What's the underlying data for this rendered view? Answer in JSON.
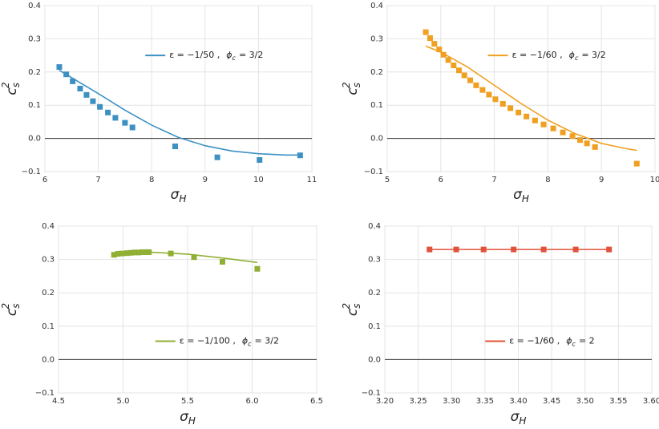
{
  "chart_data": [
    {
      "type": "line",
      "xlim": [
        6,
        11
      ],
      "xticks": [
        6,
        7,
        8,
        9,
        10,
        11
      ],
      "ylim": [
        -0.1,
        0.4
      ],
      "yticks": [
        {
          "value": -0.1,
          "label": "−0.1"
        },
        {
          "value": 0,
          "label": "0.0"
        },
        0.1,
        0.2,
        0.3,
        0.4
      ],
      "grid": true,
      "legend": "upper-center",
      "xlabel": {
        "base": "σ",
        "sub": "H"
      },
      "ylabel": {
        "base": "c",
        "sub": "s",
        "sup": "2"
      },
      "series": [
        {
          "name_parts": [
            "ε = −1/50 ,",
            "ϕ",
            "c",
            "= 3/2"
          ],
          "color": "#3d91c2",
          "x": [
            6.27,
            6.5,
            7,
            7.5,
            8,
            8.5,
            9,
            9.5,
            10,
            10.5,
            10.8
          ],
          "values": [
            0.205,
            0.183,
            0.135,
            0.085,
            0.04,
            0.003,
            -0.022,
            -0.038,
            -0.046,
            -0.05,
            -0.05
          ],
          "markers": {
            "x": [
              6.27,
              6.4,
              6.52,
              6.66,
              6.78,
              6.9,
              7.03,
              7.18,
              7.32,
              7.5,
              7.64,
              8.44,
              9.23,
              10.02,
              10.78
            ],
            "values": [
              0.215,
              0.193,
              0.172,
              0.15,
              0.131,
              0.112,
              0.095,
              0.078,
              0.062,
              0.047,
              0.033,
              -0.024,
              -0.057,
              -0.065,
              -0.051
            ]
          }
        }
      ]
    },
    {
      "type": "line",
      "xlim": [
        5,
        10
      ],
      "xticks": [
        5,
        6,
        7,
        8,
        9,
        10
      ],
      "ylim": [
        -0.1,
        0.4
      ],
      "yticks": [
        {
          "value": -0.1,
          "label": "−0.1"
        },
        {
          "value": 0,
          "label": "0.0"
        },
        0.1,
        0.2,
        0.3,
        0.4
      ],
      "grid": true,
      "legend": "upper-center",
      "xlabel": {
        "base": "σ",
        "sub": "H"
      },
      "ylabel": {
        "base": "c",
        "sub": "s",
        "sup": "2"
      },
      "series": [
        {
          "name_parts": [
            "ε = −1/60 ,",
            "ϕ",
            "c",
            "= 3/2"
          ],
          "color": "#f0a020",
          "x": [
            5.72,
            6,
            6.5,
            7,
            7.5,
            8,
            8.5,
            9,
            9.5,
            9.66
          ],
          "values": [
            0.278,
            0.26,
            0.215,
            0.16,
            0.105,
            0.055,
            0.015,
            -0.015,
            -0.032,
            -0.036
          ],
          "markers": {
            "x": [
              5.72,
              5.8,
              5.88,
              5.97,
              6.05,
              6.14,
              6.24,
              6.34,
              6.44,
              6.55,
              6.66,
              6.78,
              6.9,
              7.02,
              7.16,
              7.3,
              7.45,
              7.6,
              7.76,
              7.92,
              8.1,
              8.28,
              8.46,
              8.6,
              8.73,
              8.88,
              9.66
            ],
            "values": [
              0.32,
              0.302,
              0.285,
              0.268,
              0.252,
              0.236,
              0.22,
              0.205,
              0.19,
              0.175,
              0.16,
              0.146,
              0.132,
              0.118,
              0.104,
              0.091,
              0.078,
              0.066,
              0.054,
              0.042,
              0.03,
              0.018,
              0.007,
              -0.005,
              -0.015,
              -0.026,
              -0.076
            ]
          }
        }
      ]
    },
    {
      "type": "line",
      "xlim": [
        4.5,
        6.5
      ],
      "xticks": [
        4.5,
        {
          "value": 5,
          "label": "5.0"
        },
        5.5,
        {
          "value": 6,
          "label": "6.0"
        },
        6.5
      ],
      "ylim": [
        -0.1,
        0.4
      ],
      "yticks": [
        {
          "value": -0.1,
          "label": "−0.1"
        },
        {
          "value": 0,
          "label": "0.0"
        },
        0.1,
        0.2,
        0.3,
        0.4
      ],
      "grid": true,
      "legend": "lower-center",
      "xlabel": {
        "base": "σ",
        "sub": "H"
      },
      "ylabel": {
        "base": "c",
        "sub": "s",
        "sup": "2"
      },
      "series": [
        {
          "name_parts": [
            "ε = −1/100 ,",
            "ϕ",
            "c",
            "= 3/2"
          ],
          "color": "#8fb032",
          "x": [
            4.93,
            5.2,
            5.5,
            5.8,
            6.04
          ],
          "values": [
            0.318,
            0.322,
            0.316,
            0.303,
            0.291
          ],
          "markers": {
            "x": [
              4.93,
              4.96,
              4.99,
              5.03,
              5.06,
              5.09,
              5.12,
              5.15,
              5.18,
              5.2,
              5.37,
              5.55,
              5.77,
              6.04
            ],
            "values": [
              0.314,
              0.317,
              0.318,
              0.319,
              0.32,
              0.321,
              0.321,
              0.322,
              0.322,
              0.322,
              0.318,
              0.307,
              0.293,
              0.272
            ]
          }
        }
      ]
    },
    {
      "type": "line",
      "xlim": [
        3.2,
        3.6
      ],
      "xticks": [
        {
          "value": 3.2,
          "label": "3.20"
        },
        {
          "value": 3.25,
          "label": "3.25"
        },
        {
          "value": 3.3,
          "label": "3.30"
        },
        {
          "value": 3.35,
          "label": "3.35"
        },
        {
          "value": 3.4,
          "label": "3.40"
        },
        {
          "value": 3.45,
          "label": "3.45"
        },
        {
          "value": 3.5,
          "label": "3.50"
        },
        {
          "value": 3.55,
          "label": "3.55"
        },
        {
          "value": 3.6,
          "label": "3.60"
        }
      ],
      "ylim": [
        -0.1,
        0.4
      ],
      "yticks": [
        {
          "value": -0.1,
          "label": "−0.1"
        },
        {
          "value": 0,
          "label": "0.0"
        },
        0.1,
        0.2,
        0.3,
        0.4
      ],
      "grid": true,
      "legend": "lower-center",
      "xlabel": {
        "base": "σ",
        "sub": "H"
      },
      "ylabel": {
        "base": "c",
        "sub": "s",
        "sup": "2"
      },
      "series": [
        {
          "name_parts": [
            "ε = −1/60 ,",
            "ϕ",
            "c",
            "= 2"
          ],
          "color": "#e0533a",
          "x": [
            3.267,
            3.307,
            3.348,
            3.393,
            3.438,
            3.486,
            3.536
          ],
          "values": [
            0.33,
            0.33,
            0.33,
            0.33,
            0.33,
            0.33,
            0.33
          ],
          "markers": {
            "x": [
              3.267,
              3.307,
              3.348,
              3.393,
              3.438,
              3.486,
              3.536
            ],
            "values": [
              0.33,
              0.33,
              0.33,
              0.33,
              0.33,
              0.33,
              0.33
            ]
          }
        }
      ]
    }
  ]
}
